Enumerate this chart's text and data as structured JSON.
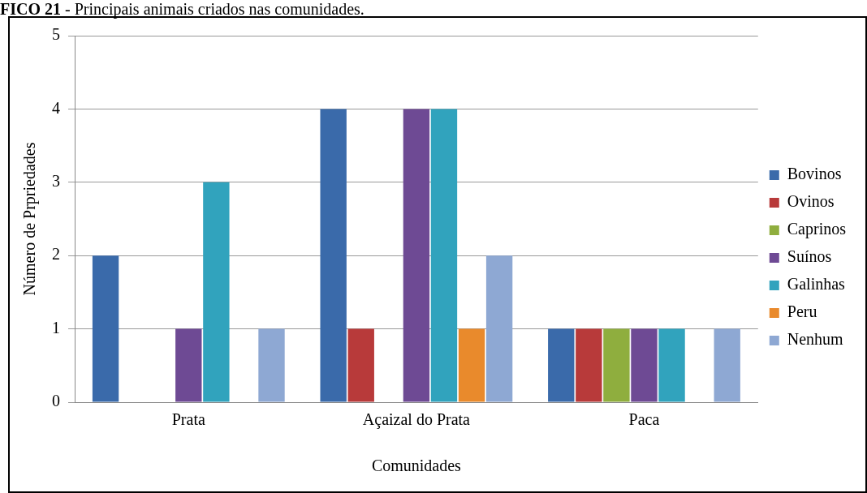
{
  "chart_data": {
    "type": "bar",
    "title": "FICO 21 - Principais animais criados nas comunidades.",
    "xlabel": "Comunidades",
    "ylabel": "Número de Prpriedades",
    "categories": [
      "Prata",
      "Açaizal do Prata",
      "Paca"
    ],
    "series": [
      {
        "name": "Bovinos",
        "color": "#3a6aaa",
        "values": [
          2,
          4,
          1
        ]
      },
      {
        "name": "Ovinos",
        "color": "#b83a3a",
        "values": [
          0,
          1,
          1
        ]
      },
      {
        "name": "Caprinos",
        "color": "#8fae3e",
        "values": [
          0,
          0,
          1
        ]
      },
      {
        "name": "Suínos",
        "color": "#6e4a94",
        "values": [
          1,
          4,
          1
        ]
      },
      {
        "name": "Galinhas",
        "color": "#31a3bd",
        "values": [
          3,
          4,
          1
        ]
      },
      {
        "name": "Peru",
        "color": "#e98a2c",
        "values": [
          0,
          1,
          0
        ]
      },
      {
        "name": "Nenhum",
        "color": "#8ea8d3",
        "values": [
          1,
          2,
          1
        ]
      }
    ],
    "ylim": [
      0,
      5
    ],
    "yticks": [
      0,
      1,
      2,
      3,
      4,
      5
    ],
    "grid": "y",
    "legend": "right"
  }
}
